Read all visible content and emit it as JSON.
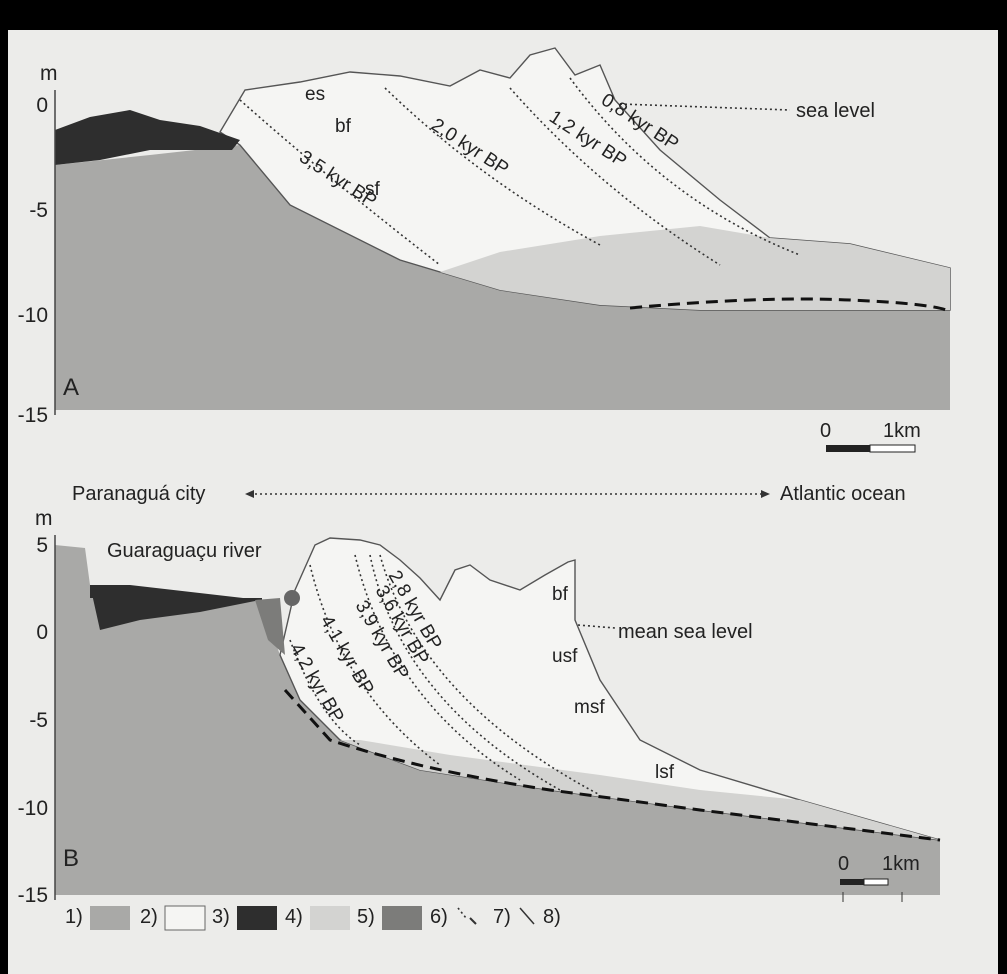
{
  "panel_a": {
    "unit": "m",
    "ticks": [
      "0",
      "-5",
      "-10",
      "-15"
    ],
    "letter": "A",
    "facies": [
      "es",
      "bf",
      "sf"
    ],
    "ages": [
      "3,5 kyr BP",
      "2,0 kyr BP",
      "1,2 kyr BP",
      "0,8 kyr BP"
    ],
    "sea_level": "sea level",
    "scale": [
      "0",
      "1km"
    ]
  },
  "direction": {
    "left": "Paranaguá city",
    "right": "Atlantic ocean"
  },
  "panel_b": {
    "unit": "m",
    "ticks": [
      "5",
      "0",
      "-5",
      "-10",
      "-15"
    ],
    "letter": "B",
    "river": "Guaraguaçu river",
    "ages": [
      "4,2 kyr BP",
      "4,1 kyr BP",
      "3,9 kyr BP",
      "3,6 kyr BP",
      "2,8 kyr BP"
    ],
    "facies": [
      "bf",
      "usf",
      "msf",
      "lsf"
    ],
    "sea_level": "mean sea level",
    "scale": [
      "0",
      "1km"
    ]
  },
  "legend": [
    "1)",
    "2)",
    "3)",
    "4)",
    "5)",
    "6)",
    "7)",
    "8)"
  ]
}
